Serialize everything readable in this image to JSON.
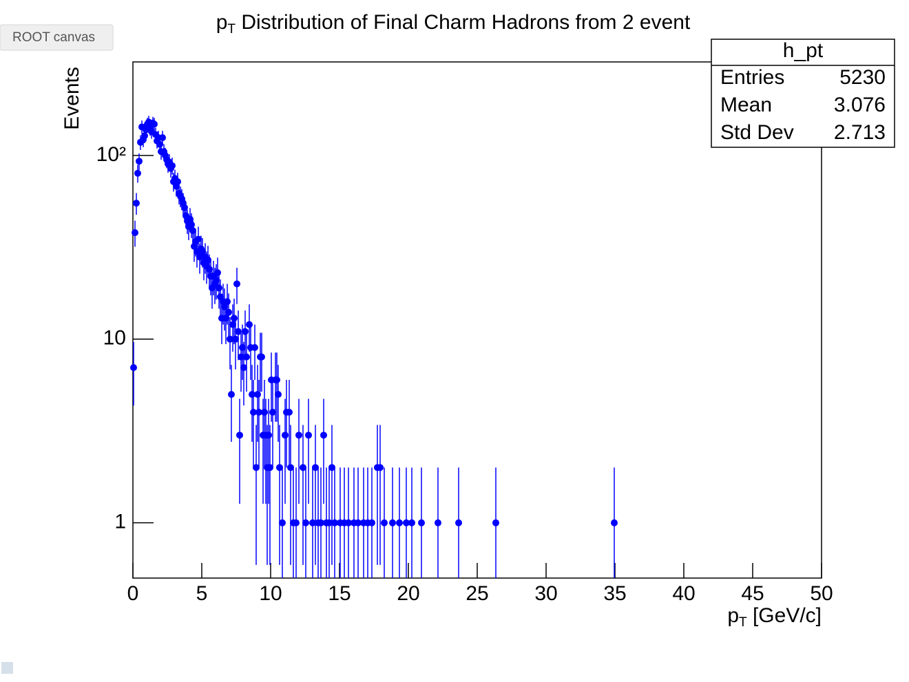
{
  "tooltip": "ROOT canvas",
  "chart_data": {
    "type": "errorbar",
    "log_y": true,
    "title": {
      "symbol": "p",
      "subscript": "T",
      "text": " Distribution of Final Charm Hadrons from 2 event"
    },
    "x_label": {
      "symbol": "p",
      "subscript": "T",
      "text": " [GeV/c]"
    },
    "y_label": "Events",
    "color": "#0000ff",
    "xlim": [
      0,
      50
    ],
    "xticks": [
      0,
      5,
      10,
      15,
      20,
      25,
      30,
      35,
      40,
      45,
      50
    ],
    "ylim": [
      0.5,
      323
    ],
    "yticks": [
      1,
      10,
      {
        "value": 100,
        "label": "10²"
      }
    ],
    "stats": {
      "name": "h_pt",
      "rows": [
        [
          "Entries",
          5230
        ],
        [
          "Mean",
          3.076
        ],
        [
          "Std Dev",
          2.713
        ]
      ]
    },
    "x": [
      0.05,
      0.15,
      0.25,
      0.35,
      0.45,
      0.55,
      0.65,
      0.75,
      0.85,
      0.95,
      1.05,
      1.15,
      1.25,
      1.35,
      1.45,
      1.55,
      1.65,
      1.75,
      1.85,
      1.95,
      2.05,
      2.15,
      2.25,
      2.35,
      2.45,
      2.55,
      2.65,
      2.75,
      2.85,
      2.95,
      3.05,
      3.15,
      3.25,
      3.35,
      3.45,
      3.55,
      3.65,
      3.75,
      3.85,
      3.95,
      4.05,
      4.15,
      4.25,
      4.35,
      4.45,
      4.55,
      4.65,
      4.75,
      4.85,
      4.95,
      5.05,
      5.15,
      5.25,
      5.35,
      5.45,
      5.55,
      5.65,
      5.75,
      5.85,
      5.95,
      6.05,
      6.15,
      6.25,
      6.35,
      6.45,
      6.55,
      6.65,
      6.75,
      6.85,
      6.95,
      7.05,
      7.15,
      7.25,
      7.35,
      7.45,
      7.55,
      7.65,
      7.75,
      7.85,
      7.95,
      8.05,
      8.15,
      8.25,
      8.45,
      8.55,
      8.65,
      8.75,
      8.85,
      8.95,
      9.05,
      9.15,
      9.25,
      9.35,
      9.45,
      9.55,
      9.65,
      9.75,
      9.85,
      9.95,
      10.05,
      10.15,
      10.35,
      10.45,
      10.55,
      10.65,
      10.85,
      11.05,
      11.15,
      11.35,
      11.45,
      11.65,
      11.85,
      12.05,
      12.35,
      12.55,
      12.75,
      13.05,
      13.25,
      13.45,
      13.65,
      13.85,
      14.05,
      14.25,
      14.45,
      14.65,
      15.05,
      15.35,
      15.65,
      16.05,
      16.35,
      16.75,
      17.05,
      17.35,
      17.75,
      17.95,
      18.25,
      18.85,
      19.35,
      19.85,
      20.25,
      20.95,
      22.15,
      23.65,
      26.35,
      34.95
    ],
    "values": [
      7,
      38,
      55,
      80,
      93,
      118,
      143,
      122,
      128,
      138,
      148,
      152,
      140,
      135,
      150,
      148,
      130,
      120,
      125,
      115,
      105,
      125,
      105,
      100,
      95,
      90,
      92,
      85,
      88,
      72,
      75,
      68,
      72,
      62,
      60,
      58,
      55,
      52,
      47,
      44,
      41,
      45,
      42,
      39,
      32,
      34,
      30,
      35,
      28,
      31,
      30,
      26,
      28,
      25,
      27,
      24,
      22,
      19,
      22,
      20,
      21,
      23,
      19,
      17,
      13,
      16,
      15,
      13,
      16,
      14,
      10,
      5,
      12,
      13,
      10,
      20,
      11,
      3,
      8,
      9,
      7,
      11,
      8,
      12,
      9,
      5,
      4,
      9,
      2,
      5,
      4,
      8,
      8,
      3,
      4,
      3,
      2,
      3,
      2,
      6,
      4,
      6,
      6,
      5,
      2,
      1,
      3,
      4,
      4,
      2,
      1,
      1,
      3,
      2,
      1,
      3,
      1,
      2,
      1,
      1,
      3,
      1,
      1,
      2,
      1,
      1,
      1,
      1,
      1,
      1,
      1,
      1,
      1,
      2,
      2,
      1,
      1,
      1,
      1,
      1,
      1,
      1,
      1,
      1,
      1
    ],
    "errors": [
      2.65,
      6.16,
      7.42,
      8.94,
      9.64,
      10.86,
      11.96,
      11.05,
      11.31,
      11.75,
      12.17,
      12.33,
      11.83,
      11.62,
      12.25,
      12.17,
      11.4,
      10.95,
      11.18,
      10.72,
      10.25,
      11.18,
      10.25,
      10,
      9.75,
      9.49,
      9.59,
      9.22,
      9.38,
      8.49,
      8.66,
      8.25,
      8.49,
      7.87,
      7.75,
      7.62,
      7.42,
      7.21,
      6.86,
      6.63,
      6.4,
      6.71,
      6.48,
      6.24,
      5.66,
      5.83,
      5.48,
      5.92,
      5.29,
      5.57,
      5.48,
      5.1,
      5.29,
      5,
      5.2,
      4.9,
      4.69,
      4.36,
      4.69,
      4.47,
      4.58,
      4.8,
      4.36,
      4.12,
      3.61,
      4,
      3.87,
      3.61,
      4,
      3.74,
      3.16,
      2.24,
      3.46,
      3.61,
      3.16,
      4.47,
      3.32,
      1.73,
      2.83,
      3,
      2.65,
      3.32,
      2.83,
      3.46,
      3,
      2.24,
      2,
      3,
      1.41,
      2.24,
      2,
      2.83,
      2.83,
      1.73,
      2,
      1.73,
      1.41,
      1.73,
      1.41,
      2.45,
      2,
      2.45,
      2.45,
      2.24,
      1.41,
      1,
      1.73,
      2,
      2,
      1.41,
      1,
      1,
      1.73,
      1.41,
      1,
      1.73,
      1,
      1.41,
      1,
      1,
      1.73,
      1,
      1,
      1.41,
      1,
      1,
      1,
      1,
      1,
      1,
      1,
      1,
      1,
      1.41,
      1.41,
      1,
      1,
      1,
      1,
      1,
      1,
      1,
      1,
      1,
      1
    ]
  }
}
